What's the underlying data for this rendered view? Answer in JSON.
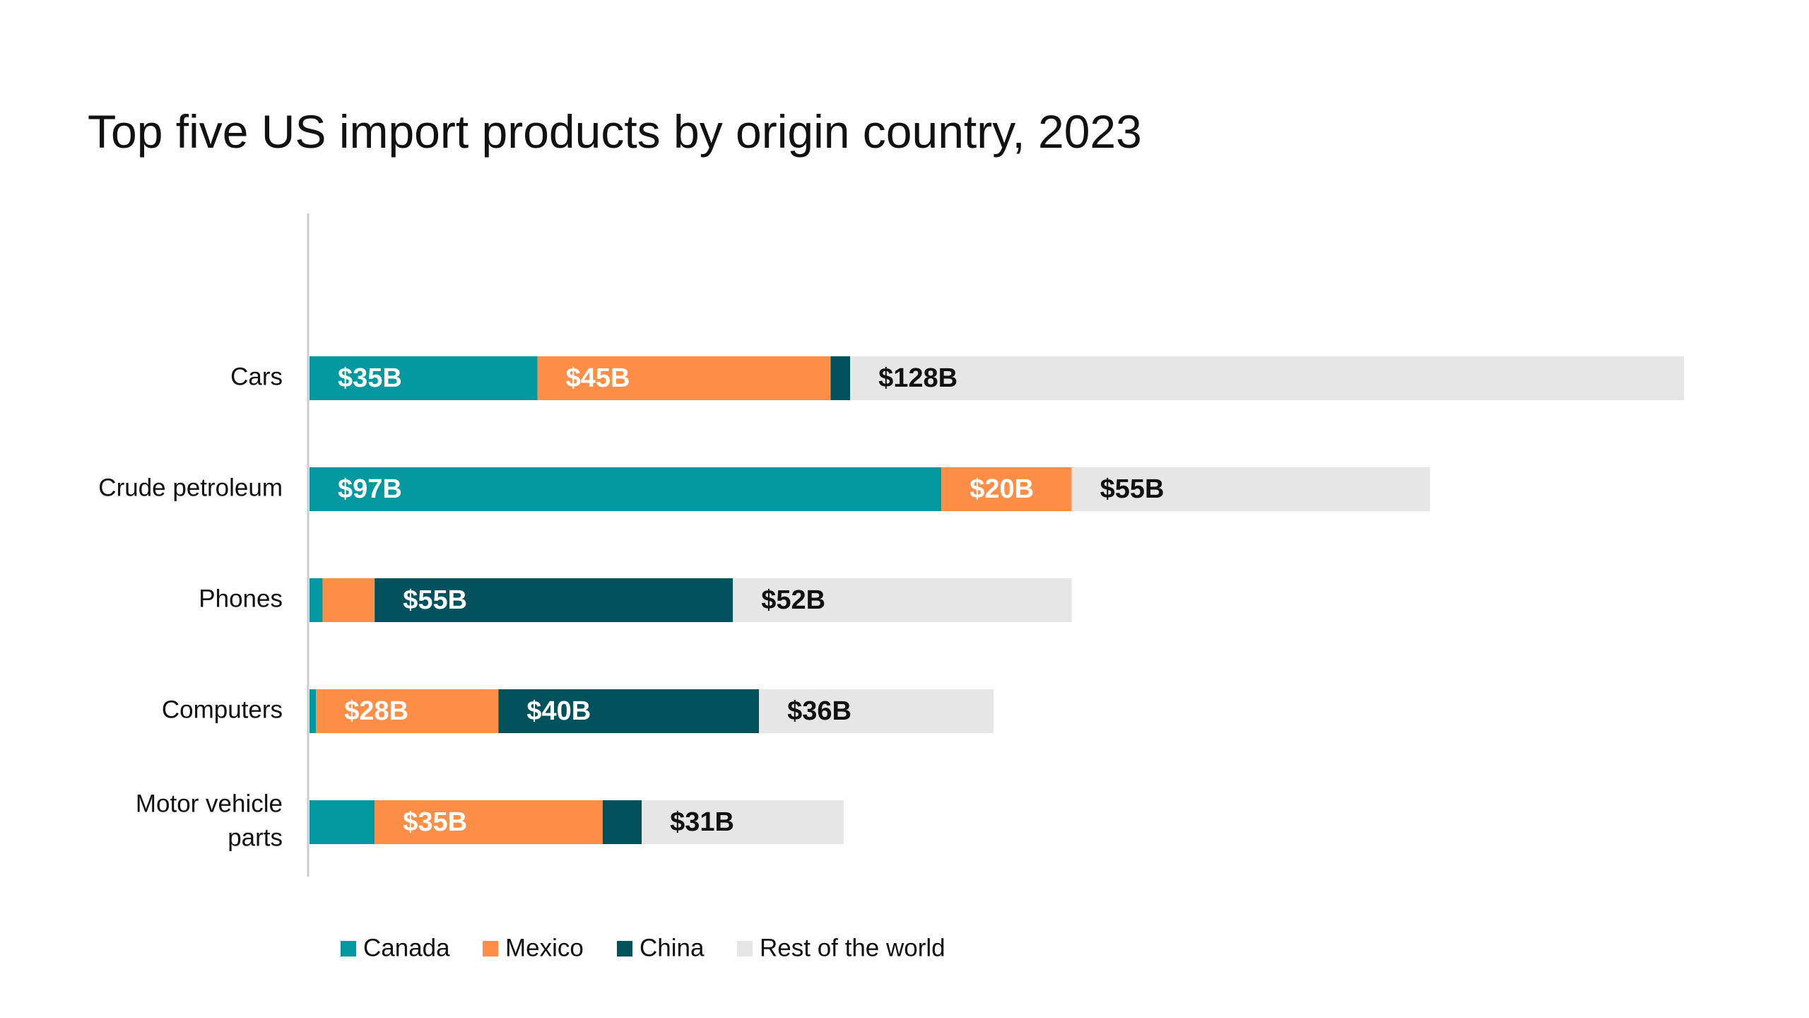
{
  "chart_data": {
    "type": "bar",
    "orientation": "horizontal",
    "stacked": true,
    "title": "Top five US import products by origin country, 2023",
    "xlabel": "",
    "ylabel": "",
    "xlim": [
      0,
      215
    ],
    "grid": false,
    "legend_position": "bottom",
    "categories": [
      [
        "Cars"
      ],
      [
        "Crude petroleum"
      ],
      [
        "Phones"
      ],
      [
        "Computers"
      ],
      [
        "Motor vehicle",
        "parts"
      ]
    ],
    "series": [
      {
        "name": "Canada",
        "color": "#03979f",
        "label_color": "#ffffff",
        "values": [
          35,
          97,
          2,
          1,
          10
        ],
        "labels": [
          "$35B",
          "$97B",
          "",
          "",
          ""
        ]
      },
      {
        "name": "Mexico",
        "color": "#fd8e47",
        "label_color": "#ffffff",
        "values": [
          45,
          20,
          8,
          28,
          35
        ],
        "labels": [
          "$45B",
          "$20B",
          "",
          "$28B",
          "$35B"
        ]
      },
      {
        "name": "China",
        "color": "#02525e",
        "label_color": "#ffffff",
        "values": [
          3,
          0,
          55,
          40,
          6
        ],
        "labels": [
          "",
          "",
          "$55B",
          "$40B",
          ""
        ]
      },
      {
        "name": "Rest of the world",
        "color": "#e6e6e6",
        "label_color": "#111111",
        "values": [
          128,
          55,
          52,
          36,
          31
        ],
        "labels": [
          "$128B",
          "$55B",
          "$52B",
          "$36B",
          "$31B"
        ]
      }
    ]
  }
}
